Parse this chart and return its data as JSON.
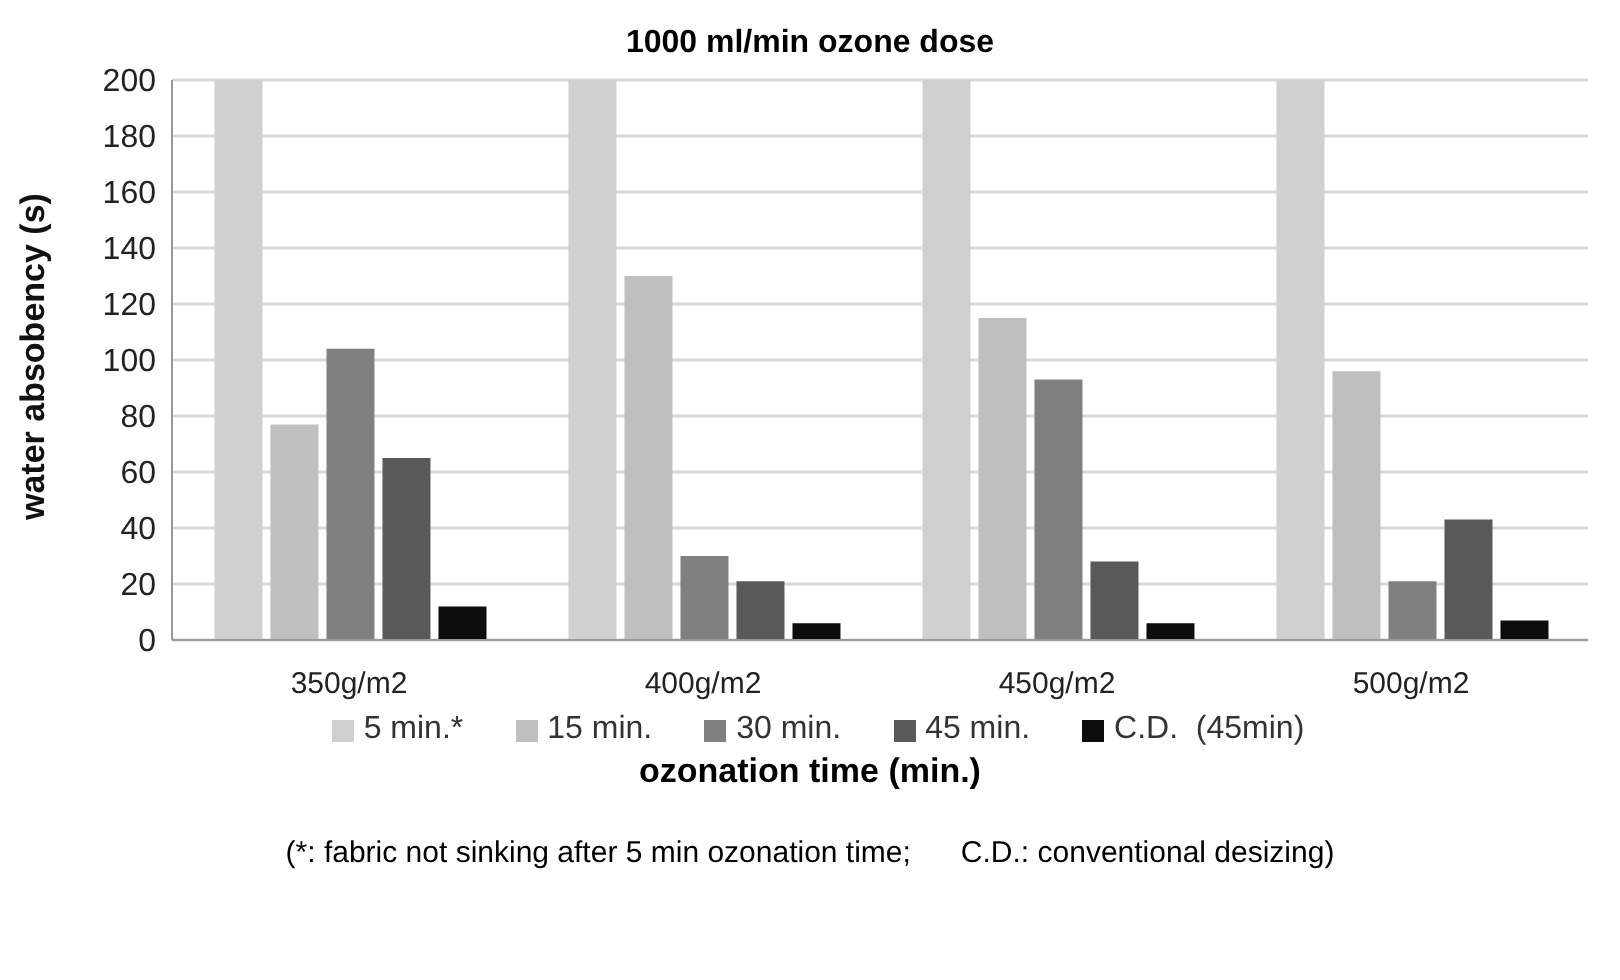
{
  "chart_data": {
    "type": "bar",
    "title": "1000 ml/min ozone dose",
    "xlabel": "ozonation time (min.)",
    "ylabel": "water absobency (s)",
    "categories": [
      "350g/m2",
      "400g/m2",
      "450g/m2",
      "500g/m2"
    ],
    "series": [
      {
        "name": "5 min.*",
        "color": "#d0d0d0",
        "values": [
          200,
          200,
          200,
          200
        ]
      },
      {
        "name": "15 min.",
        "color": "#bfbfbf",
        "values": [
          77,
          130,
          115,
          96
        ]
      },
      {
        "name": "30 min.",
        "color": "#808080",
        "values": [
          104,
          30,
          93,
          21
        ]
      },
      {
        "name": "45 min.",
        "color": "#595959",
        "values": [
          65,
          21,
          28,
          43
        ]
      },
      {
        "name": "C.D.  (45min)",
        "color": "#0d0d0d",
        "values": [
          12,
          6,
          6,
          7
        ]
      }
    ],
    "ylim": [
      0,
      200
    ],
    "yticks": [
      0,
      20,
      40,
      60,
      80,
      100,
      120,
      140,
      160,
      180,
      200
    ],
    "grid": "y",
    "legend": "bottom",
    "annotations": [
      "(*: fabric not sinking after 5 min ozonation time;      C.D.: conventional desizing)"
    ]
  }
}
